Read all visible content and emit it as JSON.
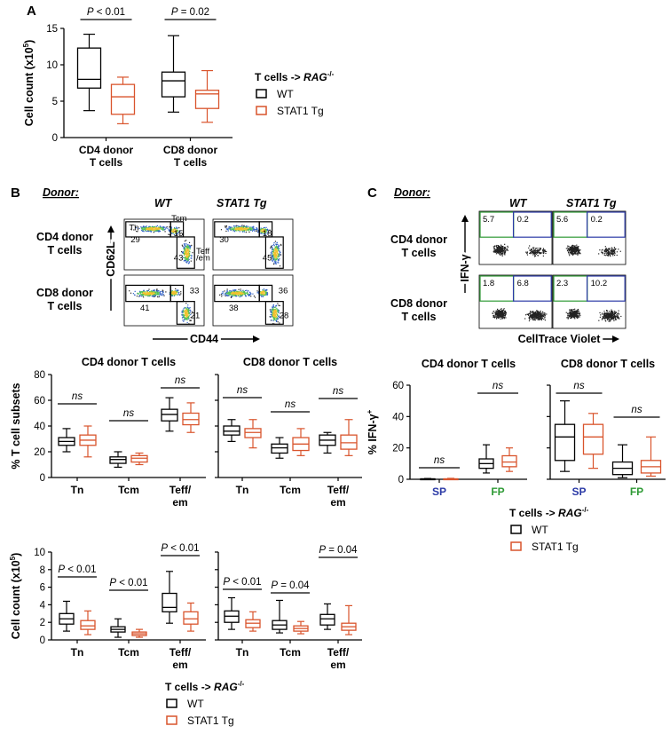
{
  "figure": {
    "panels": [
      "A",
      "B",
      "C"
    ],
    "donor_label": "Donor:",
    "genotypes": [
      "WT",
      "STAT1 Tg"
    ],
    "legend_title_prefix": "T cells ->",
    "legend_title_italic": "RAG",
    "legend_title_sup": "-/-",
    "colors": {
      "WT": "#000000",
      "STAT1 Tg": "#d9542c",
      "gate_blue": "#2b3aa6",
      "gate_green": "#2e9a35"
    }
  },
  "flow_B": {
    "rows": [
      "CD4 donor",
      "CD8 donor"
    ],
    "row_sub": "T cells",
    "x_axis": "CD44",
    "y_axis": "CD62L",
    "gate_names": {
      "tn": "Tn",
      "tcm": "Tcm",
      "teff1": "Teff",
      "teff2": "/em"
    },
    "values": {
      "cd4_wt": [
        "29",
        "15",
        "43"
      ],
      "cd4_tg": [
        "30",
        "18",
        "45"
      ],
      "cd8_wt": [
        "41",
        "33",
        "21"
      ],
      "cd8_tg": [
        "38",
        "36",
        "28"
      ]
    }
  },
  "flow_C": {
    "rows": [
      "CD4 donor",
      "CD8 donor"
    ],
    "row_sub": "T cells",
    "x_axis": "CellTrace Violet",
    "y_axis": "IFN-γ",
    "values": {
      "cd4_wt": [
        "5.7",
        "0.2"
      ],
      "cd4_tg": [
        "5.6",
        "0.2"
      ],
      "cd8_wt": [
        "1.8",
        "6.8"
      ],
      "cd8_tg": [
        "2.3",
        "10.2"
      ]
    }
  },
  "chart_data": [
    {
      "id": "A",
      "type": "boxplot",
      "ylabel": "Cell count (x10",
      "ylabel_sup": "5",
      "ylabel_end": ")",
      "ylim": [
        0,
        15
      ],
      "yticks": [
        "0",
        "5",
        "10",
        "15"
      ],
      "categories": [
        "CD4 donor\nT cells",
        "CD8 donor\nT cells"
      ],
      "series": [
        {
          "name": "WT",
          "boxes": [
            {
              "min": 3.7,
              "q1": 6.8,
              "median": 8.0,
              "q3": 12.3,
              "max": 14.2
            },
            {
              "min": 3.5,
              "q1": 5.6,
              "median": 7.8,
              "q3": 9.0,
              "max": 14.0
            }
          ]
        },
        {
          "name": "STAT1 Tg",
          "boxes": [
            {
              "min": 1.9,
              "q1": 3.2,
              "median": 5.6,
              "q3": 7.3,
              "max": 8.3
            },
            {
              "min": 2.1,
              "q1": 4.0,
              "median": 6.0,
              "q3": 6.5,
              "max": 9.2
            }
          ]
        }
      ],
      "annotations": [
        {
          "prefix": "P",
          "text": " < 0.01"
        },
        {
          "prefix": "P",
          "text": " = 0.02"
        }
      ]
    },
    {
      "id": "B_pct_CD4",
      "type": "boxplot",
      "title": "CD4 donor T cells",
      "ylabel": "% T cell subsets",
      "ylim": [
        0,
        80
      ],
      "yticks": [
        "0",
        "20",
        "40",
        "60",
        "80"
      ],
      "categories": [
        "Tn",
        "Tcm",
        "Teff/\nem"
      ],
      "series": [
        {
          "name": "WT",
          "boxes": [
            {
              "min": 20,
              "q1": 25,
              "median": 28,
              "q3": 31,
              "max": 38
            },
            {
              "min": 8,
              "q1": 11,
              "median": 14,
              "q3": 16,
              "max": 20
            },
            {
              "min": 36,
              "q1": 44,
              "median": 49,
              "q3": 53,
              "max": 62
            }
          ]
        },
        {
          "name": "STAT1 Tg",
          "boxes": [
            {
              "min": 16,
              "q1": 25,
              "median": 29,
              "q3": 33,
              "max": 40
            },
            {
              "min": 10,
              "q1": 12,
              "median": 15,
              "q3": 17,
              "max": 19
            },
            {
              "min": 35,
              "q1": 41,
              "median": 45,
              "q3": 50,
              "max": 58
            }
          ]
        }
      ],
      "annotations": [
        {
          "text": "ns"
        },
        {
          "text": "ns"
        },
        {
          "text": "ns"
        }
      ]
    },
    {
      "id": "B_pct_CD8",
      "type": "boxplot",
      "title": "CD8 donor T cells",
      "ylim": [
        0,
        80
      ],
      "categories": [
        "Tn",
        "Tcm",
        "Teff/\nem"
      ],
      "series": [
        {
          "name": "WT",
          "boxes": [
            {
              "min": 28,
              "q1": 33,
              "median": 36,
              "q3": 40,
              "max": 45
            },
            {
              "min": 15,
              "q1": 19,
              "median": 23,
              "q3": 26,
              "max": 31
            },
            {
              "min": 19,
              "q1": 25,
              "median": 29,
              "q3": 33,
              "max": 35
            }
          ]
        },
        {
          "name": "STAT1 Tg",
          "boxes": [
            {
              "min": 23,
              "q1": 31,
              "median": 35,
              "q3": 38,
              "max": 45
            },
            {
              "min": 17,
              "q1": 21,
              "median": 26,
              "q3": 31,
              "max": 38
            },
            {
              "min": 17,
              "q1": 22,
              "median": 27,
              "q3": 33,
              "max": 45
            }
          ]
        }
      ],
      "annotations": [
        {
          "text": "ns"
        },
        {
          "text": "ns"
        },
        {
          "text": "ns"
        }
      ]
    },
    {
      "id": "B_count_CD4",
      "type": "boxplot",
      "ylabel": "Cell count (x10",
      "ylabel_sup": "5",
      "ylabel_end": ")",
      "ylim": [
        0,
        10
      ],
      "yticks": [
        "0",
        "2",
        "4",
        "6",
        "8",
        "10"
      ],
      "categories": [
        "Tn",
        "Tcm",
        "Teff/\nem"
      ],
      "series": [
        {
          "name": "WT",
          "boxes": [
            {
              "min": 1.0,
              "q1": 1.8,
              "median": 2.4,
              "q3": 3.0,
              "max": 4.4
            },
            {
              "min": 0.3,
              "q1": 0.9,
              "median": 1.2,
              "q3": 1.5,
              "max": 2.4
            },
            {
              "min": 1.9,
              "q1": 3.2,
              "median": 3.7,
              "q3": 5.3,
              "max": 7.8
            }
          ]
        },
        {
          "name": "STAT1 Tg",
          "boxes": [
            {
              "min": 0.6,
              "q1": 1.2,
              "median": 1.6,
              "q3": 2.2,
              "max": 3.3
            },
            {
              "min": 0.3,
              "q1": 0.5,
              "median": 0.7,
              "q3": 0.9,
              "max": 1.2
            },
            {
              "min": 1.0,
              "q1": 1.8,
              "median": 2.4,
              "q3": 3.2,
              "max": 4.2
            }
          ]
        }
      ],
      "annotations": [
        {
          "prefix": "P",
          "text": " < 0.01"
        },
        {
          "prefix": "P",
          "text": " < 0.01"
        },
        {
          "prefix": "P",
          "text": " < 0.01"
        }
      ]
    },
    {
      "id": "B_count_CD8",
      "type": "boxplot",
      "ylim": [
        0,
        10
      ],
      "categories": [
        "Tn",
        "Tcm",
        "Teff/\nem"
      ],
      "series": [
        {
          "name": "WT",
          "boxes": [
            {
              "min": 1.2,
              "q1": 2.0,
              "median": 2.7,
              "q3": 3.3,
              "max": 4.8
            },
            {
              "min": 0.8,
              "q1": 1.2,
              "median": 1.7,
              "q3": 2.2,
              "max": 4.5
            },
            {
              "min": 1.2,
              "q1": 1.7,
              "median": 2.4,
              "q3": 2.9,
              "max": 4.1
            }
          ]
        },
        {
          "name": "STAT1 Tg",
          "boxes": [
            {
              "min": 1.0,
              "q1": 1.4,
              "median": 1.9,
              "q3": 2.3,
              "max": 3.2
            },
            {
              "min": 0.7,
              "q1": 1.0,
              "median": 1.3,
              "q3": 1.6,
              "max": 2.1
            },
            {
              "min": 0.6,
              "q1": 1.1,
              "median": 1.5,
              "q3": 1.9,
              "max": 3.9
            }
          ]
        }
      ],
      "annotations": [
        {
          "prefix": "P",
          "text": " < 0.01"
        },
        {
          "prefix": "P",
          "text": " = 0.04"
        },
        {
          "prefix": "P",
          "text": " = 0.04"
        }
      ]
    },
    {
      "id": "C_CD4",
      "type": "boxplot",
      "title": "CD4 donor T cells",
      "ylabel": "% IFN-γ",
      "ylabel_sup": "+",
      "ylim": [
        0,
        60
      ],
      "yticks": [
        "0",
        "20",
        "40",
        "60"
      ],
      "categories": [
        "SP",
        "FP"
      ],
      "series": [
        {
          "name": "WT",
          "boxes": [
            {
              "min": 0,
              "q1": 0.1,
              "median": 0.2,
              "q3": 0.3,
              "max": 0.5
            },
            {
              "min": 4,
              "q1": 7,
              "median": 10,
              "q3": 13,
              "max": 22
            }
          ]
        },
        {
          "name": "STAT1 Tg",
          "boxes": [
            {
              "min": 0,
              "q1": 0.1,
              "median": 0.2,
              "q3": 0.3,
              "max": 0.6
            },
            {
              "min": 5,
              "q1": 8,
              "median": 11,
              "q3": 15,
              "max": 20
            }
          ]
        }
      ],
      "annotations": [
        {
          "text": "ns"
        },
        {
          "text": "ns"
        }
      ]
    },
    {
      "id": "C_CD8",
      "type": "boxplot",
      "title": "CD8 donor T cells",
      "ylim": [
        0,
        60
      ],
      "categories": [
        "SP",
        "FP"
      ],
      "series": [
        {
          "name": "WT",
          "boxes": [
            {
              "min": 5,
              "q1": 12,
              "median": 27,
              "q3": 35,
              "max": 50
            },
            {
              "min": 1,
              "q1": 3,
              "median": 7,
              "q3": 11,
              "max": 22
            }
          ]
        },
        {
          "name": "STAT1 Tg",
          "boxes": [
            {
              "min": 7,
              "q1": 16,
              "median": 27,
              "q3": 35,
              "max": 42
            },
            {
              "min": 2,
              "q1": 4,
              "median": 8,
              "q3": 12,
              "max": 27
            }
          ]
        }
      ],
      "annotations": [
        {
          "text": "ns"
        },
        {
          "text": "ns"
        }
      ]
    }
  ]
}
